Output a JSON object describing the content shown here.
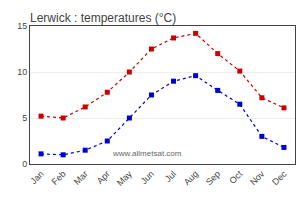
{
  "chart_data": {
    "type": "line",
    "title": "Lerwick : temperatures (°C)",
    "categories": [
      "Jan",
      "Feb",
      "Mar",
      "Apr",
      "May",
      "Jun",
      "Jul",
      "Aug",
      "Sep",
      "Oct",
      "Nov",
      "Dec"
    ],
    "series": [
      {
        "color": "#cc0000",
        "marker": "square",
        "line_style": "dotted",
        "values": [
          5.2,
          5.0,
          6.2,
          7.8,
          10.0,
          12.5,
          13.7,
          14.2,
          12.0,
          10.1,
          7.2,
          6.1
        ]
      },
      {
        "color": "#0000cc",
        "marker": "square",
        "line_style": "dotted",
        "values": [
          1.1,
          1.0,
          1.5,
          2.5,
          5.0,
          7.5,
          9.0,
          9.6,
          8.0,
          6.5,
          3.0,
          1.8
        ]
      }
    ],
    "ylim": [
      0,
      15
    ],
    "yticks": [
      0,
      5,
      10,
      15
    ],
    "grid": true,
    "annotations": [
      "www.allmetsat.com"
    ]
  }
}
